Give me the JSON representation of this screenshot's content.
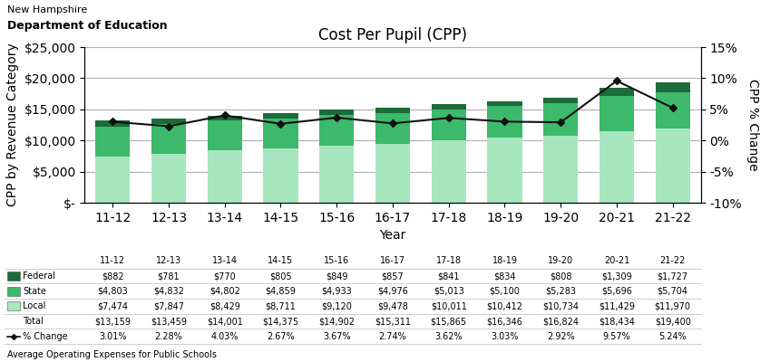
{
  "chart_data": {
    "type": "bar",
    "stacked": true,
    "title": "Cost Per Pupil (CPP)",
    "xlabel": "Year",
    "ylabel": "CPP by Revenue Category",
    "y2label": "CPP % Change",
    "annotations": [
      "New Hampshire",
      "Department of Education",
      "Average Operating Expenses for Public Schools"
    ],
    "categories": [
      "11-12",
      "12-13",
      "13-14",
      "14-15",
      "15-16",
      "16-17",
      "17-18",
      "18-19",
      "19-20",
      "20-21",
      "21-22"
    ],
    "series": [
      {
        "name": "Local",
        "type": "bar",
        "color": "#a8e6c0",
        "values": [
          7474,
          7847,
          8429,
          8711,
          9120,
          9478,
          10011,
          10412,
          10734,
          11429,
          11970
        ],
        "value_labels": [
          "$7,474",
          "$7,847",
          "$8,429",
          "$8,711",
          "$9,120",
          "$9,478",
          "$10,011",
          "$10,412",
          "$10,734",
          "$11,429",
          "$11,970"
        ]
      },
      {
        "name": "State",
        "type": "bar",
        "color": "#3cb96a",
        "values": [
          4803,
          4832,
          4802,
          4859,
          4933,
          4976,
          5013,
          5100,
          5283,
          5696,
          5704
        ],
        "value_labels": [
          "$4,803",
          "$4,832",
          "$4,802",
          "$4,859",
          "$4,933",
          "$4,976",
          "$5,013",
          "$5,100",
          "$5,283",
          "$5,696",
          "$5,704"
        ]
      },
      {
        "name": "Federal",
        "type": "bar",
        "color": "#1c6b3a",
        "values": [
          882,
          781,
          770,
          805,
          849,
          857,
          841,
          834,
          808,
          1309,
          1727
        ],
        "value_labels": [
          "$882",
          "$781",
          "$770",
          "$805",
          "$849",
          "$857",
          "$841",
          "$834",
          "$808",
          "$1,309",
          "$1,727"
        ]
      },
      {
        "name": "% Change",
        "type": "line",
        "axis": "y2",
        "color": "#111111",
        "marker": "diamond",
        "line_style": "solid",
        "values": [
          3.01,
          2.28,
          4.03,
          2.67,
          3.67,
          2.74,
          3.62,
          3.03,
          2.92,
          9.57,
          5.24
        ],
        "value_labels": [
          "3.01%",
          "2.28%",
          "4.03%",
          "2.67%",
          "3.67%",
          "2.74%",
          "3.62%",
          "3.03%",
          "2.92%",
          "9.57%",
          "5.24%"
        ]
      }
    ],
    "total": {
      "name": "Total",
      "values": [
        13159,
        13459,
        14001,
        14375,
        14902,
        15311,
        15865,
        16346,
        16824,
        18434,
        19400
      ],
      "value_labels": [
        "$13,159",
        "$13,459",
        "$14,001",
        "$14,375",
        "$14,902",
        "$15,311",
        "$15,865",
        "$16,346",
        "$16,824",
        "$18,434",
        "$19,400"
      ]
    },
    "ylim": [
      0,
      25000
    ],
    "yticks": [
      {
        "value": 0,
        "label": "$-"
      },
      {
        "value": 5000,
        "label": "$5,000"
      },
      {
        "value": 10000,
        "label": "$10,000"
      },
      {
        "value": 15000,
        "label": "$15,000"
      },
      {
        "value": 20000,
        "label": "$20,000"
      },
      {
        "value": 25000,
        "label": "$25,000"
      }
    ],
    "y2lim": [
      -10,
      15
    ],
    "y2ticks": [
      {
        "value": -10,
        "label": "-10%"
      },
      {
        "value": -5,
        "label": "-5%"
      },
      {
        "value": 0,
        "label": "0%"
      },
      {
        "value": 5,
        "label": "5%"
      },
      {
        "value": 10,
        "label": "10%"
      },
      {
        "value": 15,
        "label": "15%"
      }
    ],
    "grid": true
  }
}
